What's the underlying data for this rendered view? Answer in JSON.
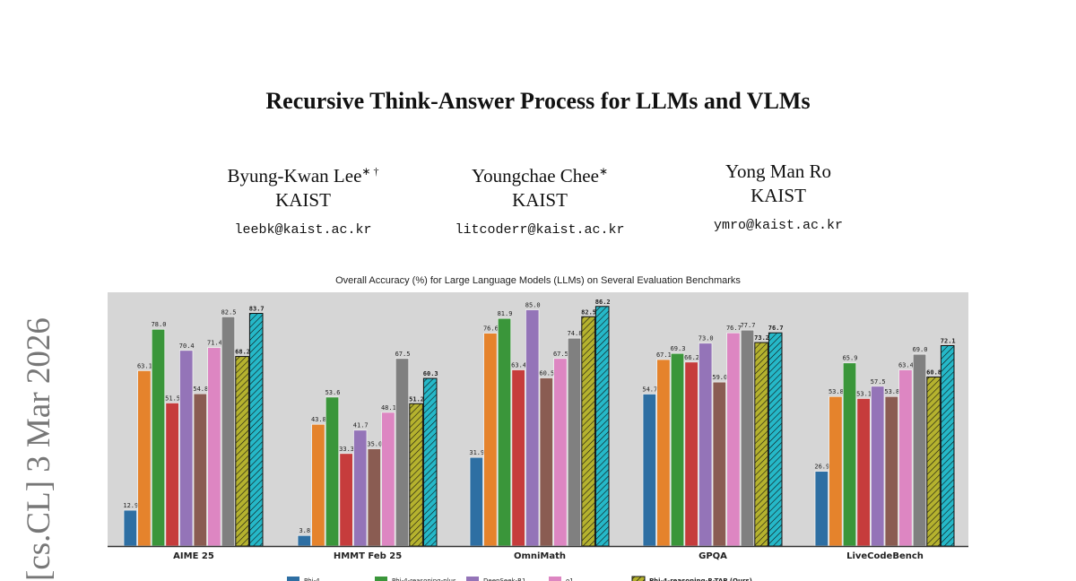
{
  "title": "Recursive Think-Answer Process for LLMs and VLMs",
  "authors": [
    {
      "name": "Byung-Kwan Lee",
      "marks": "∗ †",
      "affiliation": "KAIST",
      "email": "leebk@kaist.ac.kr"
    },
    {
      "name": "Youngchae Chee",
      "marks": "∗",
      "affiliation": "KAIST",
      "email": "litcoderr@kaist.ac.kr"
    },
    {
      "name": "Yong Man Ro",
      "marks": "",
      "affiliation": "KAIST",
      "email": "ymro@kaist.ac.kr"
    }
  ],
  "arxiv_stamp": "[cs.CL]  3 Mar 2026",
  "chart_data": {
    "type": "bar",
    "title": "Overall Accuracy (%) for Large Language Models (LLMs) on Several Evaluation Benchmarks",
    "categories": [
      "AIME 25",
      "HMMT Feb 25",
      "OmniMath",
      "GPQA",
      "LiveCodeBench"
    ],
    "ylim": [
      0,
      90
    ],
    "grid": false,
    "legend_placement": "bottom",
    "series": [
      {
        "name": "Phi-4",
        "color": "#2e6fa3",
        "hatch": false,
        "values": [
          12.9,
          3.8,
          31.9,
          54.7,
          26.9
        ]
      },
      {
        "name": "",
        "color": "#e5832c",
        "hatch": false,
        "values": [
          63.1,
          43.8,
          76.6,
          67.1,
          53.8
        ]
      },
      {
        "name": "Phi-4-reasoning-plus",
        "color": "#3a963a",
        "hatch": false,
        "values": [
          78.0,
          53.6,
          81.9,
          69.3,
          65.9
        ]
      },
      {
        "name": "",
        "color": "#c63c3c",
        "hatch": false,
        "values": [
          51.5,
          33.3,
          63.4,
          66.2,
          53.1
        ]
      },
      {
        "name": "DeepSeek-R1",
        "color": "#9474b8",
        "hatch": false,
        "values": [
          70.4,
          41.7,
          85.0,
          73.0,
          57.5
        ]
      },
      {
        "name": "",
        "color": "#8a5c52",
        "hatch": false,
        "values": [
          54.8,
          35.0,
          60.5,
          59.0,
          53.8
        ]
      },
      {
        "name": "o1",
        "color": "#dd86c2",
        "hatch": false,
        "values": [
          71.4,
          48.1,
          67.5,
          76.7,
          63.4
        ]
      },
      {
        "name": "",
        "color": "#808080",
        "hatch": false,
        "values": [
          82.5,
          67.5,
          74.8,
          77.7,
          69.0
        ]
      },
      {
        "name": "Phi-4-reasoning-R-TAP (Ours)",
        "color": "#b5b22e",
        "hatch": true,
        "values": [
          68.2,
          51.2,
          82.5,
          73.2,
          60.8
        ]
      },
      {
        "name": "",
        "color": "#25b8c8",
        "hatch": true,
        "values": [
          83.7,
          60.3,
          86.2,
          76.7,
          72.1
        ]
      }
    ]
  }
}
